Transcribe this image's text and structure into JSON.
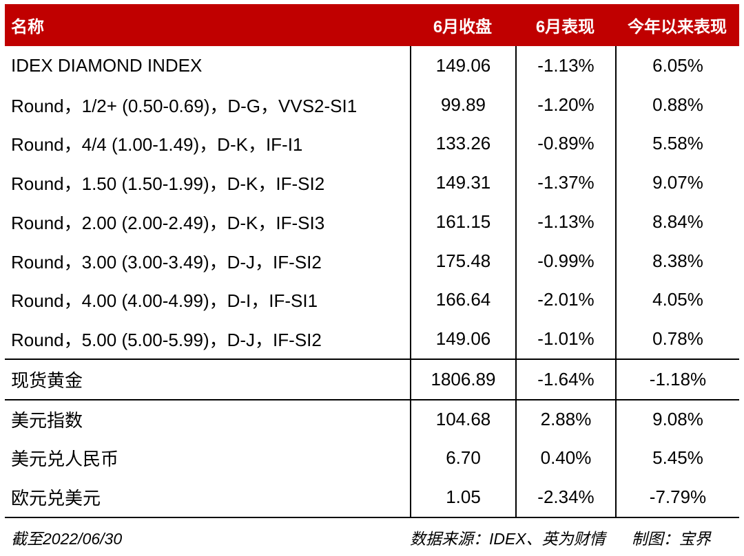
{
  "colors": {
    "accent_red": "#C00000",
    "grid_line": "#000000",
    "header_text": "#FFFFFF",
    "body_text": "#000000"
  },
  "chart_data": {
    "type": "table",
    "title": "",
    "columns": [
      "名称",
      "6月收盘",
      "6月表现",
      "今年以来表现"
    ],
    "rows": [
      [
        "IDEX DIAMOND INDEX",
        "149.06",
        "-1.13%",
        "6.05%"
      ],
      [
        "Round，1/2+ (0.50-0.69)，D-G，VVS2-SI1",
        "99.89",
        "-1.20%",
        "0.88%"
      ],
      [
        "Round，4/4 (1.00-1.49)，D-K，IF-I1",
        "133.26",
        "-0.89%",
        "5.58%"
      ],
      [
        "Round，1.50 (1.50-1.99)，D-K，IF-SI2",
        "149.31",
        "-1.37%",
        "9.07%"
      ],
      [
        "Round，2.00 (2.00-2.49)，D-K，IF-SI3",
        "161.15",
        "-1.13%",
        "8.84%"
      ],
      [
        "Round，3.00 (3.00-3.49)，D-J，IF-SI2",
        "175.48",
        "-0.99%",
        "8.38%"
      ],
      [
        "Round，4.00 (4.00-4.99)，D-I，IF-SI1",
        "166.64",
        "-2.01%",
        "4.05%"
      ],
      [
        "Round，5.00 (5.00-5.99)，D-J，IF-SI2",
        "149.06",
        "-1.01%",
        "0.78%"
      ],
      [
        "现货黄金",
        "1806.89",
        "-1.64%",
        "-1.18%"
      ],
      [
        "美元指数",
        "104.68",
        "2.88%",
        "9.08%"
      ],
      [
        "美元兑人民币",
        "6.70",
        "0.40%",
        "5.45%"
      ],
      [
        "欧元兑美元",
        "1.05",
        "-2.34%",
        "-7.79%"
      ]
    ],
    "footnotes": {
      "as_of": "截至2022/06/30",
      "source": "数据来源：IDEX、英为财情",
      "credit": "制图：宝界"
    },
    "layout_hints": {
      "section_breaks_before_row_index": [
        8,
        9
      ],
      "value_columns_centered": true,
      "grid": "vertical separators between value columns, horizontal rules around gold row and above footnotes"
    }
  }
}
